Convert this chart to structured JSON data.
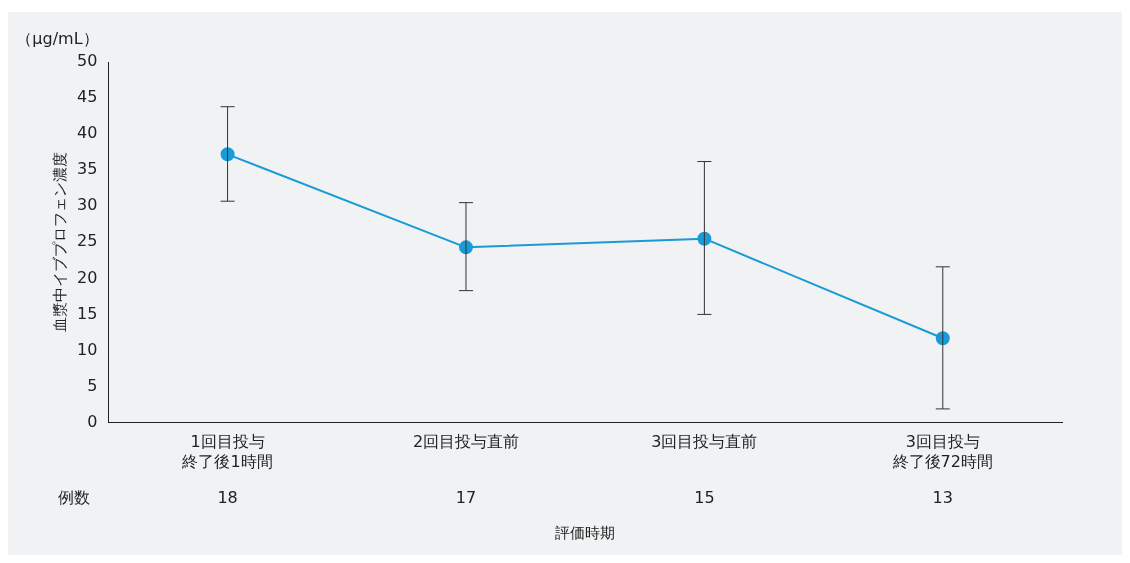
{
  "chart_data": {
    "type": "line",
    "xlabel": "評価時期",
    "ylabel": "血漿中イブプロフェン濃度",
    "categories": [
      "1回目投与終了後1時間",
      "2回目投与直前",
      "3回目投与直前",
      "3回目投与終了後72時間"
    ],
    "series": [
      {
        "color": "#1a9ad6",
        "values": [
          37.2,
          24.3,
          25.5,
          11.7
        ],
        "errors": [
          [
            30.7,
            43.8
          ],
          [
            18.3,
            30.5
          ],
          [
            15.0,
            36.2
          ],
          [
            1.9,
            21.6
          ]
        ]
      }
    ],
    "ylim": [
      0,
      50
    ],
    "yticks": [
      0,
      5,
      10,
      15,
      20,
      25,
      30,
      35,
      40,
      45,
      50
    ],
    "grid": false,
    "legend": false,
    "marker": "circle",
    "line_style": "solid",
    "annotations": [
      "（μg/mL）",
      "例数",
      "18",
      "17",
      "15",
      "13"
    ]
  }
}
